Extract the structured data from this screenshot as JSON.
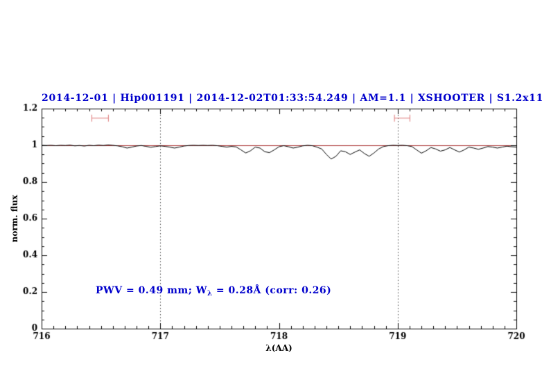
{
  "chart_data": {
    "type": "line",
    "title": "2014-12-01 | Hip001191 | 2014-12-02T01:33:54.249 | AM=1.1 | XSHOOTER | S1.2x11",
    "xlabel": "λ(AA)",
    "ylabel": "norm. flux",
    "xlim": [
      716,
      720
    ],
    "ylim": [
      0,
      1.2
    ],
    "grid": false,
    "legend": "none",
    "xticks": [
      {
        "value": 716,
        "label": "716"
      },
      {
        "value": 717,
        "label": "717"
      },
      {
        "value": 718,
        "label": "718"
      },
      {
        "value": 719,
        "label": "719"
      },
      {
        "value": 720,
        "label": "720"
      }
    ],
    "yticks": [
      {
        "value": 0,
        "label": "0"
      },
      {
        "value": 0.2,
        "label": "0.2"
      },
      {
        "value": 0.4,
        "label": "0.4"
      },
      {
        "value": 0.6,
        "label": "0.6"
      },
      {
        "value": 0.8,
        "label": "0.8"
      },
      {
        "value": 1,
        "label": "1"
      },
      {
        "value": 1.2,
        "label": "1.2"
      }
    ],
    "dotted_vlines": [
      717,
      719
    ],
    "continuum_y": 1.0,
    "markers": [
      {
        "x1": 716.42,
        "x2": 716.56,
        "y": 1.15
      },
      {
        "x1": 718.97,
        "x2": 719.1,
        "y": 1.15
      }
    ],
    "annotation": {
      "prefix": "PWV = 0.49 mm; W",
      "sub": "λ",
      "suffix": " = 0.28Å (corr: 0.26)"
    },
    "colors": {
      "title_blue": "#0000cc",
      "annotation_blue": "#0000cc",
      "continuum": "#aa3333",
      "marker": "#dd7777",
      "spectrum": "#000000",
      "dotted": "#444444",
      "axis": "#000000"
    },
    "series": [
      {
        "name": "normalized telluric spectrum",
        "x_start": 716.0,
        "x_step": 0.04,
        "flux": [
          1.0,
          0.999,
          1.0,
          0.998,
          1.0,
          0.999,
          1.001,
          0.997,
          0.999,
          0.996,
          1.0,
          0.998,
          1.001,
          0.999,
          1.002,
          1.0,
          0.997,
          0.992,
          0.985,
          0.99,
          0.996,
          0.999,
          0.994,
          0.989,
          0.993,
          0.997,
          0.994,
          0.99,
          0.985,
          0.99,
          0.996,
          0.999,
          1.0,
          0.999,
          1.0,
          0.999,
          1.0,
          0.998,
          0.994,
          0.99,
          0.994,
          0.991,
          0.975,
          0.958,
          0.97,
          0.99,
          0.985,
          0.965,
          0.96,
          0.975,
          0.992,
          0.998,
          0.992,
          0.985,
          0.99,
          0.997,
          1.0,
          0.998,
          0.99,
          0.98,
          0.95,
          0.925,
          0.94,
          0.97,
          0.965,
          0.95,
          0.963,
          0.975,
          0.955,
          0.94,
          0.958,
          0.98,
          0.993,
          0.998,
          1.0,
          0.999,
          1.0,
          0.998,
          0.993,
          0.975,
          0.957,
          0.97,
          0.988,
          0.98,
          0.968,
          0.975,
          0.988,
          0.975,
          0.963,
          0.975,
          0.99,
          0.985,
          0.978,
          0.985,
          0.993,
          0.99,
          0.985,
          0.99,
          0.995,
          0.992,
          0.99
        ]
      }
    ]
  }
}
